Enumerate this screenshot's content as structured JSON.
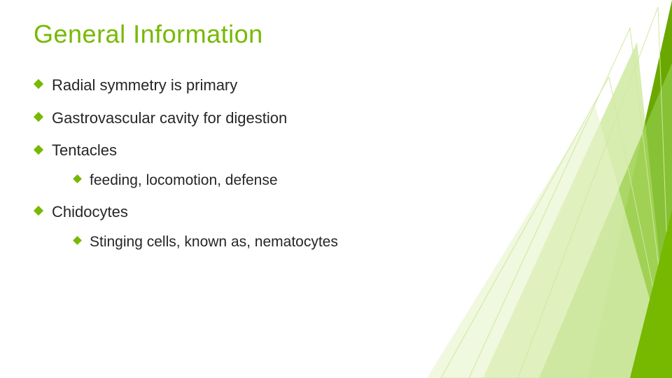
{
  "colors": {
    "accent": "#76b900",
    "title": "#76b900",
    "bullet": "#76b900",
    "text": "#262626",
    "deco_dark": "#6aa800",
    "deco_mid": "#8bc53f",
    "deco_light": "#b7de6f",
    "deco_pale": "#e6f4c9",
    "deco_line": "#cfe8a0"
  },
  "title": "General Information",
  "title_fontsize": 36,
  "body_fontsize": 22,
  "sub_fontsize": 21,
  "items": [
    {
      "text": "Radial symmetry is primary"
    },
    {
      "text": "Gastrovascular cavity for digestion"
    },
    {
      "text": "Tentacles",
      "children": [
        {
          "text": "feeding, locomotion, defense"
        }
      ]
    },
    {
      "text": "Chidocytes",
      "children": [
        {
          "text": "Stinging cells, known as, nematocytes"
        }
      ]
    }
  ]
}
